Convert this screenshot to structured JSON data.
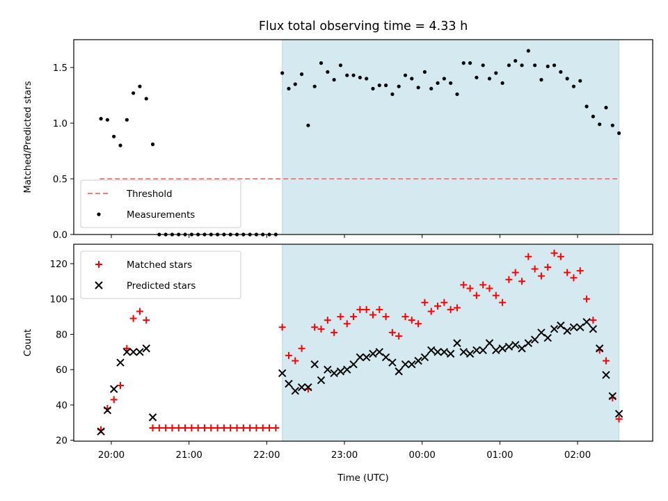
{
  "chart_data": [
    {
      "type": "scatter",
      "title": "Flux total observing time = 4.33 h",
      "xlabel": "",
      "ylabel": "Matched/Predicted stars",
      "xlim": [
        "19:31",
        "02:58"
      ],
      "ylim": [
        0,
        1.75
      ],
      "yticks": [
        "0.0",
        "0.5",
        "1.0",
        "1.5"
      ],
      "xticks": [
        "20:00",
        "21:00",
        "22:00",
        "23:00",
        "00:00",
        "01:00",
        "02:00"
      ],
      "shaded_span": [
        "22:12",
        "02:32"
      ],
      "shade_color": "#d4eaf0",
      "legend_position": "lower-left",
      "threshold": {
        "name": "Threshold",
        "y": 0.5,
        "x_range": [
          "19:51",
          "02:32"
        ],
        "color": "#f08080",
        "style": "dashed"
      },
      "series": [
        {
          "name": "Measurements",
          "color": "#000000",
          "marker": "dot",
          "points": [
            [
              "19:52",
              1.04
            ],
            [
              "19:57",
              1.03
            ],
            [
              "20:02",
              0.88
            ],
            [
              "20:07",
              0.8
            ],
            [
              "20:12",
              1.03
            ],
            [
              "20:17",
              1.27
            ],
            [
              "20:22",
              1.33
            ],
            [
              "20:27",
              1.22
            ],
            [
              "20:32",
              0.81
            ],
            [
              "20:37",
              0
            ],
            [
              "20:42",
              0
            ],
            [
              "20:47",
              0
            ],
            [
              "20:52",
              0
            ],
            [
              "20:57",
              0
            ],
            [
              "21:02",
              0
            ],
            [
              "21:07",
              0
            ],
            [
              "21:12",
              0
            ],
            [
              "21:17",
              0
            ],
            [
              "21:22",
              0
            ],
            [
              "21:27",
              0
            ],
            [
              "21:32",
              0
            ],
            [
              "21:37",
              0
            ],
            [
              "21:42",
              0
            ],
            [
              "21:47",
              0
            ],
            [
              "21:52",
              0
            ],
            [
              "21:57",
              0
            ],
            [
              "22:02",
              0
            ],
            [
              "22:07",
              0
            ],
            [
              "22:12",
              1.45
            ],
            [
              "22:17",
              1.31
            ],
            [
              "22:22",
              1.35
            ],
            [
              "22:27",
              1.44
            ],
            [
              "22:32",
              0.98
            ],
            [
              "22:37",
              1.33
            ],
            [
              "22:42",
              1.54
            ],
            [
              "22:47",
              1.46
            ],
            [
              "22:52",
              1.39
            ],
            [
              "22:57",
              1.52
            ],
            [
              "23:02",
              1.43
            ],
            [
              "23:07",
              1.43
            ],
            [
              "23:12",
              1.41
            ],
            [
              "23:17",
              1.4
            ],
            [
              "23:22",
              1.31
            ],
            [
              "23:27",
              1.34
            ],
            [
              "23:32",
              1.34
            ],
            [
              "23:37",
              1.26
            ],
            [
              "23:42",
              1.33
            ],
            [
              "23:47",
              1.43
            ],
            [
              "23:52",
              1.4
            ],
            [
              "23:57",
              1.32
            ],
            [
              "00:02",
              1.46
            ],
            [
              "00:07",
              1.31
            ],
            [
              "00:12",
              1.36
            ],
            [
              "00:17",
              1.4
            ],
            [
              "00:22",
              1.36
            ],
            [
              "00:27",
              1.26
            ],
            [
              "00:32",
              1.54
            ],
            [
              "00:37",
              1.54
            ],
            [
              "00:42",
              1.41
            ],
            [
              "00:47",
              1.52
            ],
            [
              "00:52",
              1.4
            ],
            [
              "00:57",
              1.45
            ],
            [
              "01:02",
              1.36
            ],
            [
              "01:07",
              1.52
            ],
            [
              "01:12",
              1.56
            ],
            [
              "01:17",
              1.52
            ],
            [
              "01:22",
              1.65
            ],
            [
              "01:27",
              1.52
            ],
            [
              "01:32",
              1.39
            ],
            [
              "01:37",
              1.51
            ],
            [
              "01:42",
              1.52
            ],
            [
              "01:47",
              1.46
            ],
            [
              "01:52",
              1.4
            ],
            [
              "01:57",
              1.33
            ],
            [
              "02:02",
              1.38
            ],
            [
              "02:07",
              1.15
            ],
            [
              "02:12",
              1.06
            ],
            [
              "02:17",
              0.99
            ],
            [
              "02:22",
              1.14
            ],
            [
              "02:27",
              0.98
            ],
            [
              "02:32",
              0.91
            ]
          ]
        }
      ]
    },
    {
      "type": "scatter",
      "title": "",
      "xlabel": "Time (UTC)",
      "ylabel": "Count",
      "xlim": [
        "19:31",
        "02:58"
      ],
      "ylim": [
        19.5,
        131
      ],
      "yticks": [
        "20",
        "40",
        "60",
        "80",
        "100",
        "120"
      ],
      "xticks": [
        "20:00",
        "21:00",
        "22:00",
        "23:00",
        "00:00",
        "01:00",
        "02:00"
      ],
      "shaded_span": [
        "22:12",
        "02:32"
      ],
      "shade_color": "#d4eaf0",
      "legend_position": "top-left",
      "series": [
        {
          "name": "Matched stars",
          "color": "#ff0000",
          "marker": "plus",
          "points": [
            [
              "19:52",
              26
            ],
            [
              "19:57",
              38
            ],
            [
              "20:02",
              43
            ],
            [
              "20:07",
              51
            ],
            [
              "20:12",
              72
            ],
            [
              "20:17",
              89
            ],
            [
              "20:22",
              93
            ],
            [
              "20:27",
              88
            ],
            [
              "20:32",
              27
            ],
            [
              "20:37",
              27
            ],
            [
              "20:42",
              27
            ],
            [
              "20:47",
              27
            ],
            [
              "20:52",
              27
            ],
            [
              "20:57",
              27
            ],
            [
              "21:02",
              27
            ],
            [
              "21:07",
              27
            ],
            [
              "21:12",
              27
            ],
            [
              "21:17",
              27
            ],
            [
              "21:22",
              27
            ],
            [
              "21:27",
              27
            ],
            [
              "21:32",
              27
            ],
            [
              "21:37",
              27
            ],
            [
              "21:42",
              27
            ],
            [
              "21:47",
              27
            ],
            [
              "21:52",
              27
            ],
            [
              "21:57",
              27
            ],
            [
              "22:02",
              27
            ],
            [
              "22:07",
              27
            ],
            [
              "22:12",
              84
            ],
            [
              "22:17",
              68
            ],
            [
              "22:22",
              65
            ],
            [
              "22:27",
              72
            ],
            [
              "22:32",
              49
            ],
            [
              "22:37",
              84
            ],
            [
              "22:42",
              83
            ],
            [
              "22:47",
              88
            ],
            [
              "22:52",
              81
            ],
            [
              "22:57",
              90
            ],
            [
              "23:02",
              86
            ],
            [
              "23:07",
              90
            ],
            [
              "23:12",
              94
            ],
            [
              "23:17",
              94
            ],
            [
              "23:22",
              91
            ],
            [
              "23:27",
              94
            ],
            [
              "23:32",
              90
            ],
            [
              "23:37",
              81
            ],
            [
              "23:42",
              79
            ],
            [
              "23:47",
              90
            ],
            [
              "23:52",
              88
            ],
            [
              "23:57",
              86
            ],
            [
              "00:02",
              98
            ],
            [
              "00:07",
              93
            ],
            [
              "00:12",
              96
            ],
            [
              "00:17",
              98
            ],
            [
              "00:22",
              94
            ],
            [
              "00:27",
              95
            ],
            [
              "00:32",
              108
            ],
            [
              "00:37",
              106
            ],
            [
              "00:42",
              102
            ],
            [
              "00:47",
              108
            ],
            [
              "00:52",
              106
            ],
            [
              "00:57",
              102
            ],
            [
              "01:02",
              98
            ],
            [
              "01:07",
              111
            ],
            [
              "01:12",
              115
            ],
            [
              "01:17",
              110
            ],
            [
              "01:22",
              124
            ],
            [
              "01:27",
              117
            ],
            [
              "01:32",
              113
            ],
            [
              "01:37",
              118
            ],
            [
              "01:42",
              126
            ],
            [
              "01:47",
              124
            ],
            [
              "01:52",
              115
            ],
            [
              "01:57",
              112
            ],
            [
              "02:02",
              116
            ],
            [
              "02:07",
              100
            ],
            [
              "02:12",
              88
            ],
            [
              "02:17",
              71
            ],
            [
              "02:22",
              65
            ],
            [
              "02:27",
              44
            ],
            [
              "02:32",
              32
            ]
          ]
        },
        {
          "name": "Predicted stars",
          "color": "#000000",
          "marker": "x",
          "points": [
            [
              "19:52",
              25
            ],
            [
              "19:57",
              37
            ],
            [
              "20:02",
              49
            ],
            [
              "20:07",
              64
            ],
            [
              "20:12",
              70
            ],
            [
              "20:17",
              70
            ],
            [
              "20:22",
              70
            ],
            [
              "20:27",
              72
            ],
            [
              "20:32",
              33
            ],
            [
              "22:12",
              58
            ],
            [
              "22:17",
              52
            ],
            [
              "22:22",
              48
            ],
            [
              "22:27",
              50
            ],
            [
              "22:32",
              50
            ],
            [
              "22:37",
              63
            ],
            [
              "22:42",
              54
            ],
            [
              "22:47",
              60
            ],
            [
              "22:52",
              58
            ],
            [
              "22:57",
              59
            ],
            [
              "23:02",
              60
            ],
            [
              "23:07",
              63
            ],
            [
              "23:12",
              67
            ],
            [
              "23:17",
              67
            ],
            [
              "23:22",
              69
            ],
            [
              "23:27",
              70
            ],
            [
              "23:32",
              67
            ],
            [
              "23:37",
              64
            ],
            [
              "23:42",
              59
            ],
            [
              "23:47",
              63
            ],
            [
              "23:52",
              63
            ],
            [
              "23:57",
              65
            ],
            [
              "00:02",
              67
            ],
            [
              "00:07",
              71
            ],
            [
              "00:12",
              70
            ],
            [
              "00:17",
              70
            ],
            [
              "00:22",
              69
            ],
            [
              "00:27",
              75
            ],
            [
              "00:32",
              70
            ],
            [
              "00:37",
              69
            ],
            [
              "00:42",
              71
            ],
            [
              "00:47",
              71
            ],
            [
              "00:52",
              75
            ],
            [
              "00:57",
              71
            ],
            [
              "01:02",
              72
            ],
            [
              "01:07",
              73
            ],
            [
              "01:12",
              74
            ],
            [
              "01:17",
              72
            ],
            [
              "01:22",
              75
            ],
            [
              "01:27",
              77
            ],
            [
              "01:32",
              81
            ],
            [
              "01:37",
              78
            ],
            [
              "01:42",
              83
            ],
            [
              "01:47",
              85
            ],
            [
              "01:52",
              82
            ],
            [
              "01:57",
              84
            ],
            [
              "02:02",
              84
            ],
            [
              "02:07",
              87
            ],
            [
              "02:12",
              83
            ],
            [
              "02:17",
              72
            ],
            [
              "02:22",
              57
            ],
            [
              "02:27",
              45
            ],
            [
              "02:32",
              35
            ]
          ]
        }
      ]
    }
  ]
}
